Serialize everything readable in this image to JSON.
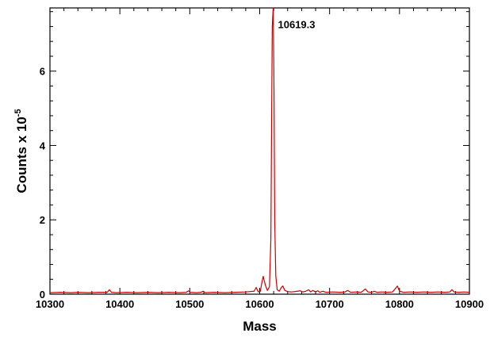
{
  "chart_data": {
    "type": "line",
    "title": "",
    "xlabel": "Mass",
    "ylabel": "Counts x 10",
    "ylabel_exponent": "-5",
    "xlim": [
      10300,
      10900
    ],
    "ylim": [
      0,
      7.7
    ],
    "x_ticks": [
      10300,
      10400,
      10500,
      10600,
      10700,
      10800,
      10900
    ],
    "x_tick_labels": [
      "10300",
      "10400",
      "10500",
      "10600",
      "10700",
      "10800",
      "10900"
    ],
    "y_ticks": [
      0,
      2,
      4,
      6
    ],
    "y_tick_labels": [
      "0",
      "2",
      "4",
      "6"
    ],
    "grid": false,
    "annotations": [
      {
        "text": "10619.3",
        "x": 10619.3,
        "y": 7.2
      }
    ],
    "series": [
      {
        "color": "#cc0000",
        "x": [
          10300,
          10315,
          10330,
          10340,
          10355,
          10370,
          10382,
          10385,
          10388,
          10395,
          10410,
          10425,
          10440,
          10455,
          10470,
          10485,
          10495,
          10498,
          10501,
          10510,
          10516,
          10519,
          10522,
          10535,
          10550,
          10565,
          10580,
          10592,
          10595,
          10598,
          10601,
          10603,
          10605,
          10608,
          10611,
          10614,
          10616,
          10617,
          10618,
          10619.3,
          10620.5,
          10621.5,
          10623,
          10625,
          10628,
          10631,
          10633,
          10636,
          10640,
          10645,
          10650,
          10658,
          10662,
          10666,
          10670,
          10673,
          10676,
          10680,
          10683,
          10686,
          10690,
          10695,
          10705,
          10715,
          10722,
          10726,
          10730,
          10738,
          10745,
          10748,
          10751,
          10755,
          10760,
          10764,
          10768,
          10775,
          10782,
          10790,
          10794,
          10797,
          10800,
          10806,
          10815,
          10825,
          10835,
          10845,
          10855,
          10865,
          10872,
          10875,
          10878,
          10885,
          10892,
          10900
        ],
        "y": [
          0.04,
          0.05,
          0.04,
          0.05,
          0.04,
          0.05,
          0.05,
          0.12,
          0.05,
          0.04,
          0.05,
          0.04,
          0.05,
          0.04,
          0.05,
          0.04,
          0.05,
          0.09,
          0.05,
          0.04,
          0.05,
          0.08,
          0.04,
          0.05,
          0.04,
          0.05,
          0.06,
          0.08,
          0.18,
          0.06,
          0.08,
          0.3,
          0.48,
          0.25,
          0.1,
          0.2,
          1.5,
          4.5,
          7.2,
          7.7,
          5.5,
          2.0,
          0.5,
          0.12,
          0.08,
          0.18,
          0.22,
          0.1,
          0.07,
          0.06,
          0.07,
          0.09,
          0.06,
          0.08,
          0.12,
          0.06,
          0.1,
          0.06,
          0.09,
          0.05,
          0.08,
          0.05,
          0.06,
          0.05,
          0.06,
          0.1,
          0.05,
          0.06,
          0.05,
          0.09,
          0.14,
          0.06,
          0.05,
          0.08,
          0.05,
          0.06,
          0.05,
          0.06,
          0.15,
          0.22,
          0.08,
          0.05,
          0.06,
          0.05,
          0.06,
          0.05,
          0.06,
          0.05,
          0.06,
          0.12,
          0.06,
          0.05,
          0.06,
          0.05
        ]
      }
    ]
  }
}
